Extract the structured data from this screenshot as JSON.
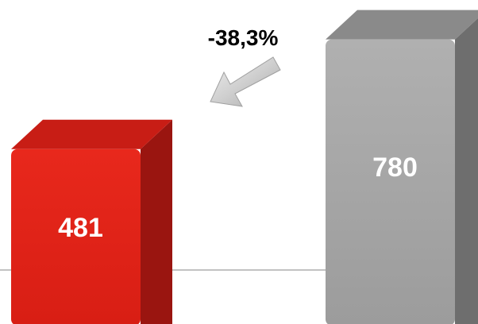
{
  "chart_data": {
    "type": "bar",
    "style": "3d-column",
    "values": [
      481,
      780
    ],
    "value_labels": [
      "481",
      "780"
    ],
    "colors": [
      "#e0231a",
      "#a6a6a6"
    ],
    "annotation": {
      "text": "-38,3%",
      "arrow_direction": "down-left"
    },
    "grid": false,
    "legend": "none"
  }
}
